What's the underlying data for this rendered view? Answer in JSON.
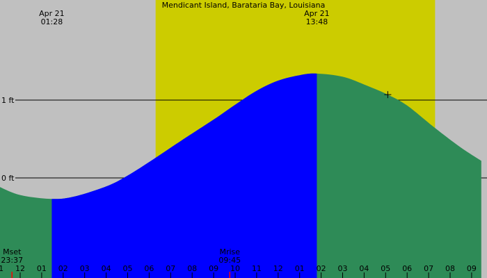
{
  "chart_data": {
    "type": "area",
    "title": "Mendicant Island, Barataria Bay, Louisiana",
    "extrema": [
      {
        "date": "Apr 21",
        "time": "01:28",
        "hour": 1.47,
        "height_ft": -0.27
      },
      {
        "date": "Apr 21",
        "time": "13:48",
        "hour": 13.8,
        "height_ft": 1.34
      }
    ],
    "moon_events": [
      {
        "label": "Mset",
        "time": "23:37",
        "hour": -0.38
      },
      {
        "label": "Mrise",
        "time": "09:45",
        "hour": 9.75
      }
    ],
    "y_ticks": [
      {
        "label": "0 ft",
        "value": 0
      },
      {
        "label": "1 ft",
        "value": 1
      }
    ],
    "x_ticks": [
      {
        "label": "11",
        "hour": -1
      },
      {
        "label": "12",
        "hour": 0
      },
      {
        "label": "01",
        "hour": 1
      },
      {
        "label": "02",
        "hour": 2
      },
      {
        "label": "03",
        "hour": 3
      },
      {
        "label": "04",
        "hour": 4
      },
      {
        "label": "05",
        "hour": 5
      },
      {
        "label": "06",
        "hour": 6
      },
      {
        "label": "07",
        "hour": 7
      },
      {
        "label": "08",
        "hour": 8
      },
      {
        "label": "09",
        "hour": 9
      },
      {
        "label": "10",
        "hour": 10
      },
      {
        "label": "11",
        "hour": 11
      },
      {
        "label": "12",
        "hour": 12
      },
      {
        "label": "01",
        "hour": 13
      },
      {
        "label": "02",
        "hour": 14
      },
      {
        "label": "03",
        "hour": 15
      },
      {
        "label": "04",
        "hour": 16
      },
      {
        "label": "05",
        "hour": 17
      },
      {
        "label": "06",
        "hour": 18
      },
      {
        "label": "07",
        "hour": 19
      },
      {
        "label": "08",
        "hour": 20
      },
      {
        "label": "09",
        "hour": 21
      }
    ],
    "current_marker": {
      "hour": 17.1,
      "height_ft": 1.07
    },
    "daylight": {
      "start_hour": 6.3,
      "end_hour": 19.3
    },
    "highlight": {
      "start_hour": 1.47,
      "end_hour": 13.8
    },
    "tide_curve": [
      {
        "hour": -1.45,
        "height_ft": -0.05
      },
      {
        "hour": -1.0,
        "height_ft": -0.11
      },
      {
        "hour": 0.0,
        "height_ft": -0.22
      },
      {
        "hour": 1.47,
        "height_ft": -0.27
      },
      {
        "hour": 2.5,
        "height_ft": -0.24
      },
      {
        "hour": 4.0,
        "height_ft": -0.11
      },
      {
        "hour": 5.0,
        "height_ft": 0.03
      },
      {
        "hour": 6.2,
        "height_ft": 0.24
      },
      {
        "hour": 7.5,
        "height_ft": 0.48
      },
      {
        "hour": 9.0,
        "height_ft": 0.75
      },
      {
        "hour": 10.0,
        "height_ft": 0.94
      },
      {
        "hour": 11.0,
        "height_ft": 1.12
      },
      {
        "hour": 12.0,
        "height_ft": 1.25
      },
      {
        "hour": 13.0,
        "height_ft": 1.32
      },
      {
        "hour": 13.8,
        "height_ft": 1.34
      },
      {
        "hour": 15.0,
        "height_ft": 1.3
      },
      {
        "hour": 16.0,
        "height_ft": 1.2
      },
      {
        "hour": 17.1,
        "height_ft": 1.07
      },
      {
        "hour": 18.0,
        "height_ft": 0.93
      },
      {
        "hour": 19.3,
        "height_ft": 0.64
      },
      {
        "hour": 20.5,
        "height_ft": 0.39
      },
      {
        "hour": 21.45,
        "height_ft": 0.22
      }
    ],
    "colors": {
      "background": "#c0c0c0",
      "daylight": "#cccc00",
      "tide": "#2e8b57",
      "highlight": "#0000ff",
      "moon_tick": "#ff0000"
    }
  }
}
